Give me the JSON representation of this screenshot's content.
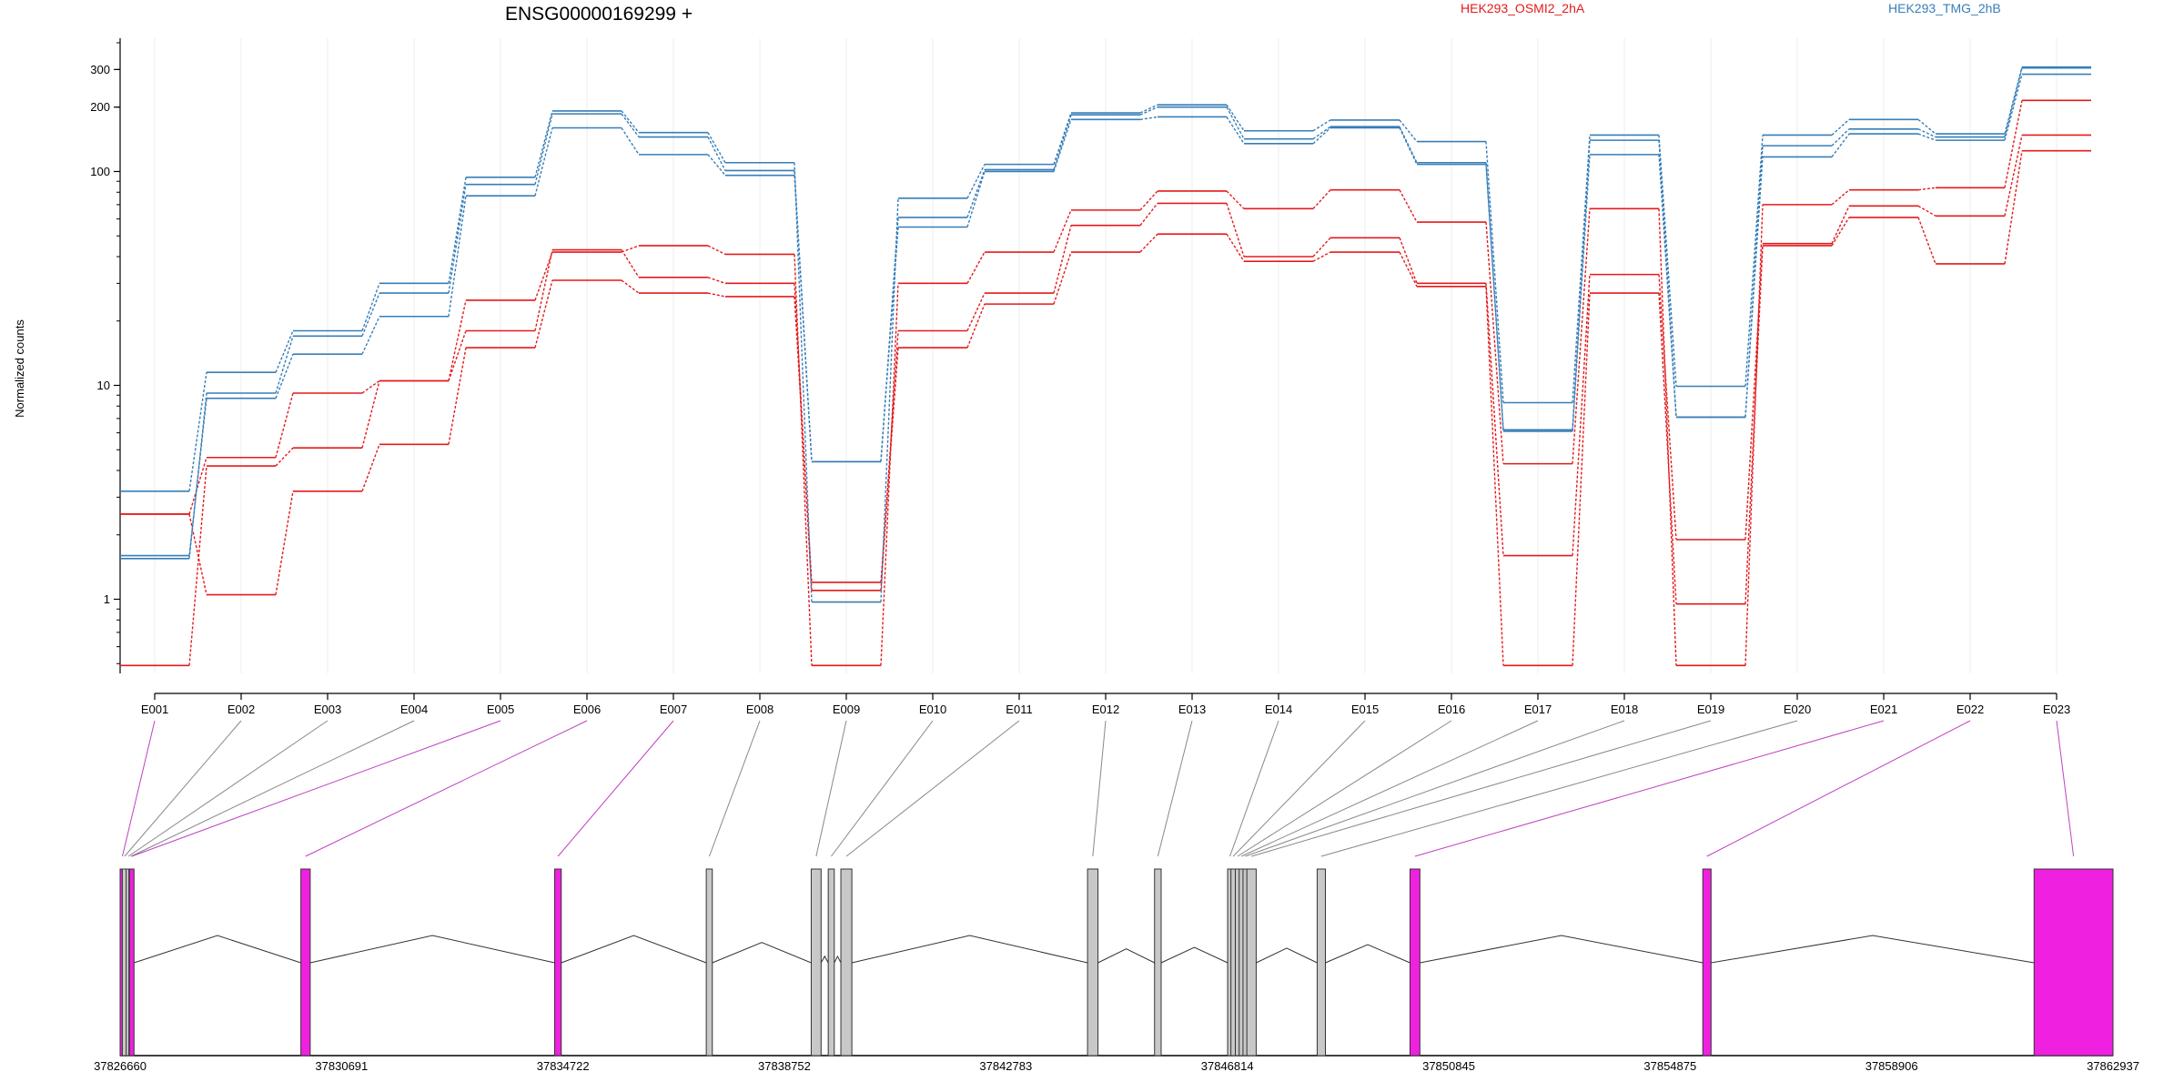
{
  "chart_data": {
    "type": "line",
    "title": "ENSG00000169299 +",
    "ylabel": "Normalized counts",
    "yscale": "log",
    "ylim": [
      0.45,
      420
    ],
    "yticks": [
      "1",
      "10",
      "100",
      "200",
      "300"
    ],
    "ytick_values": [
      1,
      10,
      100,
      200,
      300
    ],
    "bottom_value": 0.49,
    "legend": [
      {
        "name": "HEK293_OSMI2_2hA",
        "color": "#e41a1c"
      },
      {
        "name": "HEK293_TMG_2hB",
        "color": "#377eb8"
      }
    ],
    "categories": [
      "E001",
      "E002",
      "E003",
      "E004",
      "E005",
      "E006",
      "E007",
      "E008",
      "E009",
      "E010",
      "E011",
      "E012",
      "E013",
      "E014",
      "E015",
      "E016",
      "E017",
      "E018",
      "E019",
      "E020",
      "E021",
      "E022",
      "E023"
    ],
    "series": [
      {
        "group": "HEK293_OSMI2_2hA",
        "color": "#e41a1c",
        "values": [
          2.5,
          1.05,
          3.2,
          5.3,
          15,
          31,
          27,
          26,
          1.2,
          15,
          24,
          42,
          51,
          38,
          42,
          29,
          0.49,
          27,
          0.95,
          45,
          61,
          37,
          125
        ]
      },
      {
        "group": "HEK293_OSMI2_2hA",
        "color": "#e41a1c",
        "values": [
          0.49,
          4.2,
          5.1,
          10.5,
          18,
          43,
          32,
          30,
          1.1,
          18,
          27,
          56,
          71,
          40,
          49,
          30,
          1.6,
          33,
          1.9,
          46,
          69,
          62,
          148
        ]
      },
      {
        "group": "HEK293_OSMI2_2hA",
        "color": "#e41a1c",
        "values": [
          2.5,
          4.6,
          9.2,
          10.5,
          25,
          42,
          45,
          41,
          0.49,
          30,
          42,
          66,
          81,
          67,
          82,
          58,
          4.3,
          67,
          0.49,
          70,
          82,
          84,
          215
        ]
      },
      {
        "group": "HEK293_TMG_2hB",
        "color": "#377eb8",
        "values": [
          1.6,
          8.7,
          14,
          21,
          77,
          160,
          120,
          96,
          4.4,
          55,
          100,
          175,
          180,
          135,
          160,
          108,
          6.1,
          120,
          7.1,
          117,
          150,
          140,
          285
        ]
      },
      {
        "group": "HEK293_TMG_2hB",
        "color": "#377eb8",
        "values": [
          1.55,
          9.2,
          17,
          27,
          87,
          186,
          145,
          101,
          4.4,
          61,
          102,
          184,
          200,
          142,
          162,
          110,
          6.2,
          140,
          7.1,
          132,
          158,
          145,
          305
        ]
      },
      {
        "group": "HEK293_TMG_2hB",
        "color": "#377eb8",
        "values": [
          3.2,
          11.5,
          18,
          30,
          94,
          192,
          152,
          110,
          0.97,
          75,
          108,
          188,
          205,
          155,
          174,
          138,
          8.3,
          148,
          9.9,
          148,
          175,
          150,
          308
        ]
      }
    ],
    "gene_model": {
      "coord_ticks": [
        "37826660",
        "37830691",
        "37834722",
        "37838752",
        "37842783",
        "37846814",
        "37850845",
        "37854875",
        "37858906",
        "37862937"
      ],
      "coord_tick_values": [
        37826660,
        37830691,
        37834722,
        37838752,
        37842783,
        37846814,
        37850845,
        37854875,
        37858906,
        37862937
      ],
      "range": [
        37826660,
        37862937
      ],
      "exons": [
        {
          "id": "E001",
          "start": 37826660,
          "end": 37826700,
          "highlight": true
        },
        {
          "id": "E002",
          "start": 37826700,
          "end": 37826770,
          "highlight": false
        },
        {
          "id": "E003",
          "start": 37826770,
          "end": 37826820,
          "highlight": false
        },
        {
          "id": "E004",
          "start": 37826820,
          "end": 37826860,
          "highlight": false
        },
        {
          "id": "E005",
          "start": 37826860,
          "end": 37826830,
          "highlight": true
        },
        {
          "id": "E006",
          "start": 37829950,
          "end": 37830120,
          "highlight": true
        },
        {
          "id": "E007",
          "start": 37834570,
          "end": 37834690,
          "highlight": true
        },
        {
          "id": "E008",
          "start": 37837330,
          "end": 37837440,
          "highlight": false
        },
        {
          "id": "E009",
          "start": 37839240,
          "end": 37839420,
          "highlight": false
        },
        {
          "id": "E010",
          "start": 37839550,
          "end": 37839660,
          "highlight": false
        },
        {
          "id": "E011",
          "start": 37839780,
          "end": 37839980,
          "highlight": false
        },
        {
          "id": "E012",
          "start": 37844270,
          "end": 37844460,
          "highlight": false
        },
        {
          "id": "E013",
          "start": 37845490,
          "end": 37845610,
          "highlight": false
        },
        {
          "id": "E014",
          "start": 37846820,
          "end": 37846880,
          "highlight": false
        },
        {
          "id": "E015",
          "start": 37846880,
          "end": 37846960,
          "highlight": false
        },
        {
          "id": "E016",
          "start": 37846960,
          "end": 37847030,
          "highlight": false
        },
        {
          "id": "E017",
          "start": 37847030,
          "end": 37847100,
          "highlight": false
        },
        {
          "id": "E018",
          "start": 37847100,
          "end": 37847170,
          "highlight": false
        },
        {
          "id": "E019",
          "start": 37847170,
          "end": 37847340,
          "highlight": false
        },
        {
          "id": "E020",
          "start": 37848450,
          "end": 37848600,
          "highlight": false
        },
        {
          "id": "E021",
          "start": 37850140,
          "end": 37850320,
          "highlight": true
        },
        {
          "id": "E022",
          "start": 37855470,
          "end": 37855620,
          "highlight": true
        },
        {
          "id": "E023",
          "start": 37861500,
          "end": 37862937,
          "highlight": true
        }
      ],
      "exon_color": "#c8c8c8",
      "highlight_color": "#f020e0"
    }
  }
}
